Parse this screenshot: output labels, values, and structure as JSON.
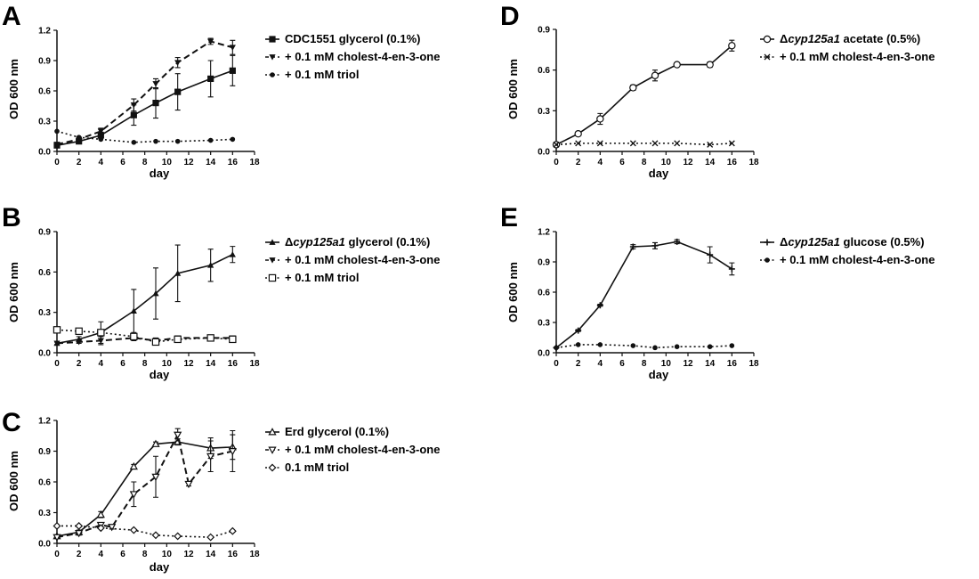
{
  "chart_data": [
    {
      "type": "line",
      "panel": "A",
      "xlabel": "day",
      "ylabel": "OD 600 nm",
      "xlim": [
        0,
        18
      ],
      "ylim": [
        0,
        1.2
      ],
      "xticks": [
        "0",
        "2",
        "4",
        "6",
        "8",
        "10",
        "12",
        "14",
        "16",
        "18"
      ],
      "yticks": [
        "0.0",
        "0.3",
        "0.6",
        "0.9",
        "1.2"
      ],
      "legend_position": "right",
      "series": [
        {
          "name": "CDC1551 glycerol (0.1%)",
          "name_parts": [
            {
              "t": "CDC1551 glycerol (0.1%)"
            }
          ],
          "marker": "square",
          "linestyle": "solid",
          "x": [
            0,
            2,
            4,
            7,
            9,
            11,
            14,
            16
          ],
          "y": [
            0.06,
            0.1,
            0.16,
            0.36,
            0.48,
            0.59,
            0.72,
            0.8
          ],
          "err": [
            0.01,
            0.02,
            0.03,
            0.1,
            0.15,
            0.18,
            0.18,
            0.15
          ]
        },
        {
          "name": "+ 0.1 mM cholest-4-en-3-one",
          "name_parts": [
            {
              "t": "+ 0.1 mM cholest-4-en-3-one"
            }
          ],
          "marker": "tri-down",
          "linestyle": "dashed",
          "x": [
            0,
            2,
            4,
            7,
            9,
            11,
            14,
            16
          ],
          "y": [
            0.07,
            0.12,
            0.2,
            0.46,
            0.67,
            0.88,
            1.09,
            1.03
          ],
          "err": [
            0.01,
            0.02,
            0.03,
            0.06,
            0.05,
            0.05,
            0.03,
            0.07
          ]
        },
        {
          "name": "+ 0.1 mM triol",
          "name_parts": [
            {
              "t": "+ 0.1 mM triol"
            }
          ],
          "marker": "circle",
          "linestyle": "dotted",
          "x": [
            0,
            2,
            4,
            7,
            9,
            11,
            14,
            16
          ],
          "y": [
            0.2,
            0.14,
            0.12,
            0.09,
            0.1,
            0.1,
            0.11,
            0.12
          ],
          "err": [
            0,
            0,
            0,
            0,
            0,
            0,
            0,
            0
          ]
        }
      ]
    },
    {
      "type": "line",
      "panel": "B",
      "xlabel": "day",
      "ylabel": "OD 600 nm",
      "xlim": [
        0,
        18
      ],
      "ylim": [
        0,
        0.9
      ],
      "xticks": [
        "0",
        "2",
        "4",
        "6",
        "8",
        "10",
        "12",
        "14",
        "16",
        "18"
      ],
      "yticks": [
        "0.0",
        "0.3",
        "0.6",
        "0.9"
      ],
      "legend_position": "right",
      "series": [
        {
          "name": "Δcyp125a1 glycerol (0.1%)",
          "name_parts": [
            {
              "t": "Δ"
            },
            {
              "t": "cyp125a1",
              "i": true
            },
            {
              "t": " glycerol (0.1%)"
            }
          ],
          "marker": "tri-up",
          "linestyle": "solid",
          "x": [
            0,
            2,
            4,
            7,
            9,
            11,
            14,
            16
          ],
          "y": [
            0.07,
            0.1,
            0.15,
            0.31,
            0.44,
            0.59,
            0.65,
            0.73
          ],
          "err": [
            0.01,
            0.02,
            0.08,
            0.16,
            0.19,
            0.21,
            0.12,
            0.06
          ]
        },
        {
          "name": "+ 0.1 mM cholest-4-en-3-one",
          "name_parts": [
            {
              "t": "+ 0.1 mM cholest-4-en-3-one"
            }
          ],
          "marker": "tri-down",
          "linestyle": "dashed",
          "x": [
            0,
            2,
            4,
            7,
            9,
            11,
            14,
            16
          ],
          "y": [
            0.07,
            0.08,
            0.09,
            0.11,
            0.09,
            0.11,
            0.11,
            0.11
          ],
          "err": [
            0.01,
            0.01,
            0.03,
            0.02,
            0.02,
            0.01,
            0.01,
            0.01
          ]
        },
        {
          "name": "+ 0.1 mM triol",
          "name_parts": [
            {
              "t": "+ 0.1 mM triol"
            }
          ],
          "marker": "square-open",
          "linestyle": "dotted",
          "x": [
            0,
            2,
            4,
            7,
            9,
            11,
            14,
            16
          ],
          "y": [
            0.17,
            0.16,
            0.15,
            0.12,
            0.08,
            0.1,
            0.11,
            0.1
          ],
          "err": [
            0,
            0,
            0,
            0,
            0,
            0,
            0,
            0
          ]
        }
      ]
    },
    {
      "type": "line",
      "panel": "C",
      "xlabel": "day",
      "ylabel": "OD 600 nm",
      "xlim": [
        0,
        18
      ],
      "ylim": [
        0,
        1.2
      ],
      "xticks": [
        "0",
        "2",
        "4",
        "6",
        "8",
        "10",
        "12",
        "14",
        "16",
        "18"
      ],
      "yticks": [
        "0.0",
        "0.3",
        "0.6",
        "0.9",
        "1.2"
      ],
      "legend_position": "right",
      "series": [
        {
          "name": "Erd glycerol (0.1%)",
          "name_parts": [
            {
              "t": "Erd glycerol (0.1%)"
            }
          ],
          "marker": "tri-up-open",
          "linestyle": "solid",
          "x": [
            0,
            2,
            4,
            7,
            9,
            11,
            14,
            16
          ],
          "y": [
            0.07,
            0.11,
            0.28,
            0.75,
            0.97,
            0.99,
            0.93,
            0.94
          ],
          "err": [
            0.01,
            0.02,
            0.03,
            0.02,
            0.02,
            0.03,
            0.1,
            0.12
          ]
        },
        {
          "name": "+ 0.1 mM cholest-4-en-3-one",
          "name_parts": [
            {
              "t": "+ 0.1 mM cholest-4-en-3-one"
            }
          ],
          "marker": "tri-down-open",
          "linestyle": "dashed",
          "x": [
            0,
            2,
            4,
            5,
            7,
            9,
            11,
            12,
            14,
            16
          ],
          "y": [
            0.06,
            0.1,
            0.18,
            0.16,
            0.48,
            0.65,
            1.06,
            0.58,
            0.85,
            0.9
          ],
          "err": [
            0.01,
            0.02,
            0.02,
            0.02,
            0.12,
            0.2,
            0.06,
            0.02,
            0.15,
            0.2
          ]
        },
        {
          "name": "0.1 mM triol",
          "name_parts": [
            {
              "t": "0.1 mM triol"
            }
          ],
          "marker": "diamond-open",
          "linestyle": "dotted",
          "x": [
            0,
            2,
            4,
            7,
            9,
            11,
            14,
            16
          ],
          "y": [
            0.17,
            0.17,
            0.15,
            0.13,
            0.08,
            0.07,
            0.06,
            0.12
          ],
          "err": [
            0,
            0,
            0,
            0,
            0,
            0,
            0,
            0
          ]
        }
      ]
    },
    {
      "type": "line",
      "panel": "D",
      "xlabel": "day",
      "ylabel": "OD 600 nm",
      "xlim": [
        0,
        18
      ],
      "ylim": [
        0,
        0.9
      ],
      "xticks": [
        "0",
        "2",
        "4",
        "6",
        "8",
        "10",
        "12",
        "14",
        "16",
        "18"
      ],
      "yticks": [
        "0.0",
        "0.3",
        "0.6",
        "0.9"
      ],
      "legend_position": "right",
      "series": [
        {
          "name": "Δcyp125a1 acetate (0.5%)",
          "name_parts": [
            {
              "t": "Δ"
            },
            {
              "t": "cyp125a1",
              "i": true
            },
            {
              "t": " acetate (0.5%)"
            }
          ],
          "marker": "circle-open",
          "linestyle": "solid",
          "x": [
            0,
            2,
            4,
            7,
            9,
            11,
            14,
            16
          ],
          "y": [
            0.05,
            0.13,
            0.24,
            0.47,
            0.56,
            0.64,
            0.64,
            0.78
          ],
          "err": [
            0.005,
            0.01,
            0.04,
            0.02,
            0.04,
            0.01,
            0.02,
            0.04
          ]
        },
        {
          "name": "+ 0.1 mM cholest-4-en-3-one",
          "name_parts": [
            {
              "t": "+ 0.1 mM cholest-4-en-3-one"
            }
          ],
          "marker": "x",
          "linestyle": "dotted",
          "x": [
            0,
            2,
            4,
            7,
            9,
            11,
            14,
            16
          ],
          "y": [
            0.05,
            0.06,
            0.06,
            0.06,
            0.06,
            0.06,
            0.05,
            0.06
          ],
          "err": [
            0,
            0,
            0,
            0,
            0,
            0,
            0,
            0
          ]
        }
      ]
    },
    {
      "type": "line",
      "panel": "E",
      "xlabel": "day",
      "ylabel": "OD 600 nm",
      "xlim": [
        0,
        18
      ],
      "ylim": [
        0,
        1.2
      ],
      "xticks": [
        "0",
        "2",
        "4",
        "6",
        "8",
        "10",
        "12",
        "14",
        "16",
        "18"
      ],
      "yticks": [
        "0.0",
        "0.3",
        "0.6",
        "0.9",
        "1.2"
      ],
      "legend_position": "right",
      "series": [
        {
          "name": "Δcyp125a1 glucose (0.5%)",
          "name_parts": [
            {
              "t": "Δ"
            },
            {
              "t": "cyp125a1",
              "i": true
            },
            {
              "t": " glucose (0.5%)"
            }
          ],
          "marker": "plus",
          "linestyle": "solid",
          "x": [
            0,
            2,
            4,
            7,
            9,
            11,
            14,
            16
          ],
          "y": [
            0.05,
            0.22,
            0.47,
            1.05,
            1.06,
            1.1,
            0.97,
            0.83
          ],
          "err": [
            0.005,
            0.01,
            0.01,
            0.02,
            0.03,
            0.02,
            0.08,
            0.06
          ]
        },
        {
          "name": "+ 0.1 mM cholest-4-en-3-one",
          "name_parts": [
            {
              "t": "+ 0.1 mM cholest-4-en-3-one"
            }
          ],
          "marker": "circle",
          "linestyle": "dotted",
          "x": [
            0,
            2,
            4,
            7,
            9,
            11,
            14,
            16
          ],
          "y": [
            0.05,
            0.08,
            0.08,
            0.07,
            0.05,
            0.06,
            0.06,
            0.07
          ],
          "err": [
            0,
            0,
            0,
            0,
            0,
            0,
            0,
            0
          ]
        }
      ]
    }
  ]
}
